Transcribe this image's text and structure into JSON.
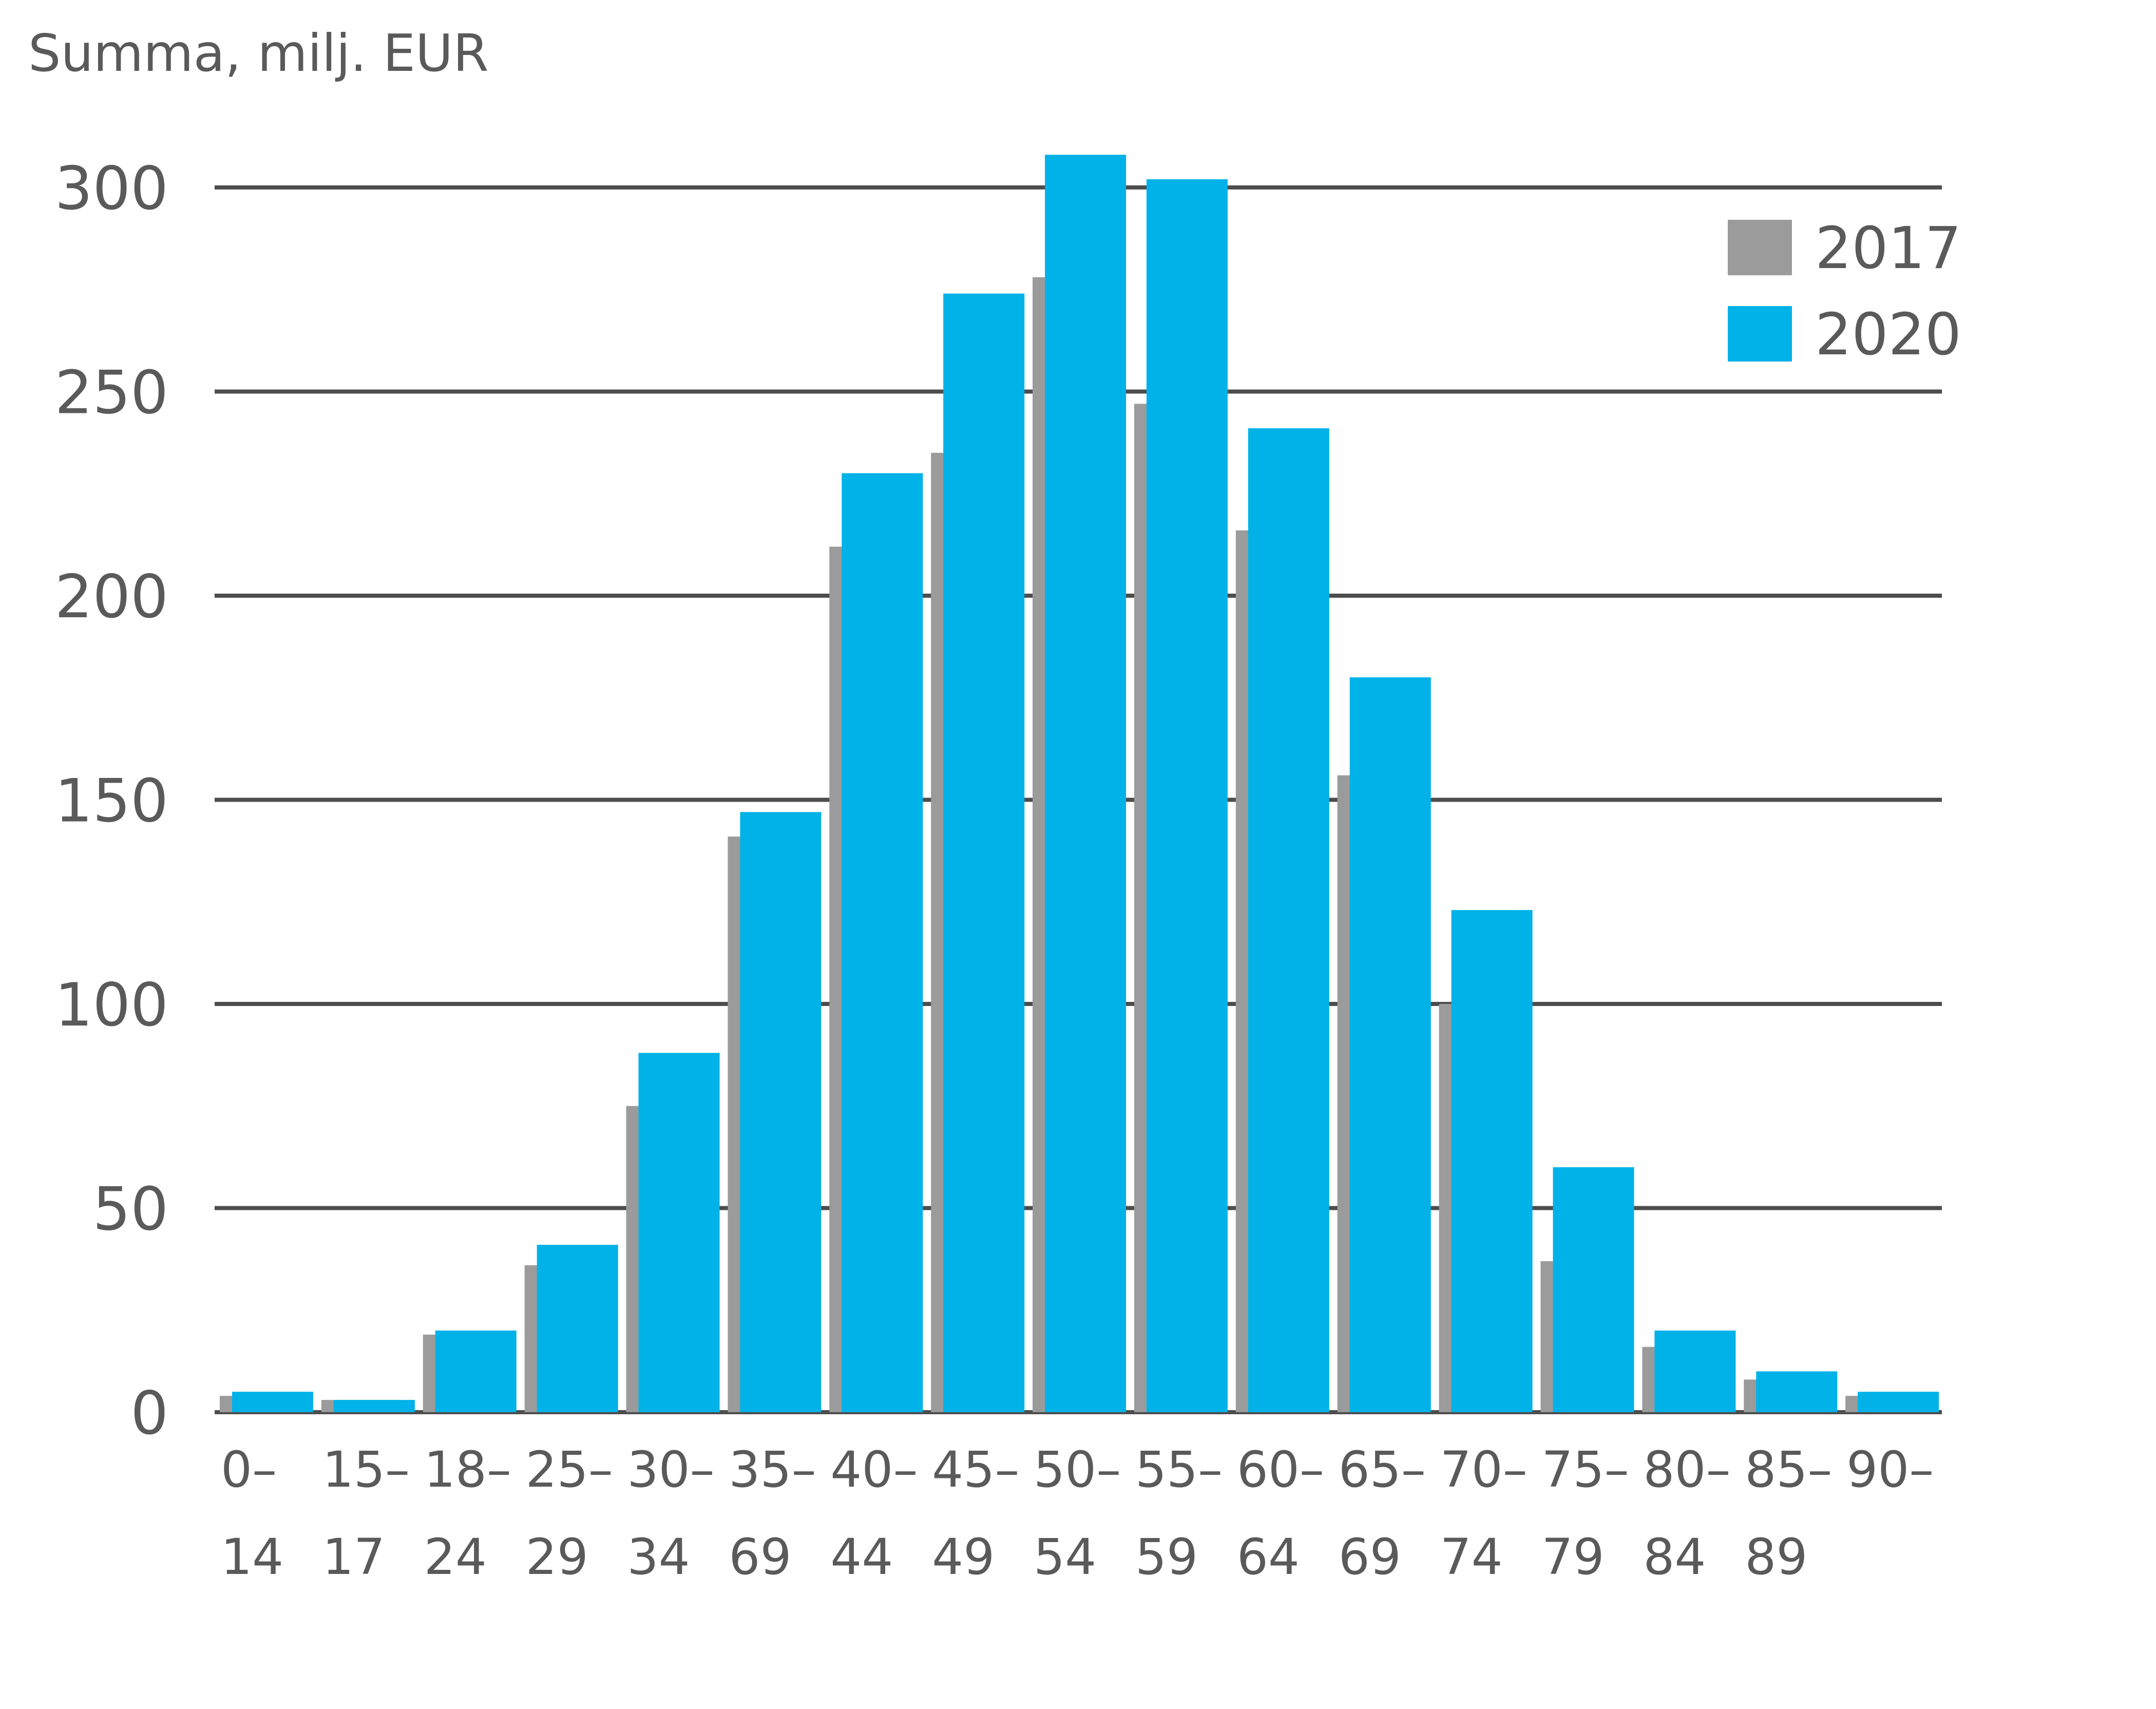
{
  "chart_data": {
    "type": "bar",
    "ylabel": "Summa, milj. EUR",
    "ylim": [
      0,
      300
    ],
    "yticks": [
      "0",
      "50",
      "100",
      "150",
      "200",
      "250",
      "300"
    ],
    "grid": true,
    "legend_position": "top-right",
    "categories": [
      [
        "0–",
        "14"
      ],
      [
        "15–",
        "17"
      ],
      [
        "18–",
        "24"
      ],
      [
        "25–",
        "29"
      ],
      [
        "30–",
        "34"
      ],
      [
        "35–",
        "69"
      ],
      [
        "40–",
        "44"
      ],
      [
        "45–",
        "49"
      ],
      [
        "50–",
        "54"
      ],
      [
        "55–",
        "59"
      ],
      [
        "60–",
        "64"
      ],
      [
        "65–",
        "69"
      ],
      [
        "70–",
        "74"
      ],
      [
        "75–",
        "79"
      ],
      [
        "80–",
        "84"
      ],
      [
        "85–",
        "89"
      ],
      [
        "90–",
        ""
      ]
    ],
    "series": [
      {
        "name": "2017",
        "color": "#9b9b9b",
        "values": [
          4,
          3,
          19,
          36,
          75,
          141,
          212,
          235,
          278,
          247,
          216,
          156,
          100,
          37,
          16,
          8,
          4
        ]
      },
      {
        "name": "2020",
        "color": "#00b2e8",
        "values": [
          5,
          3,
          20,
          41,
          88,
          147,
          230,
          274,
          308,
          302,
          241,
          180,
          123,
          60,
          20,
          10,
          5
        ]
      }
    ]
  }
}
